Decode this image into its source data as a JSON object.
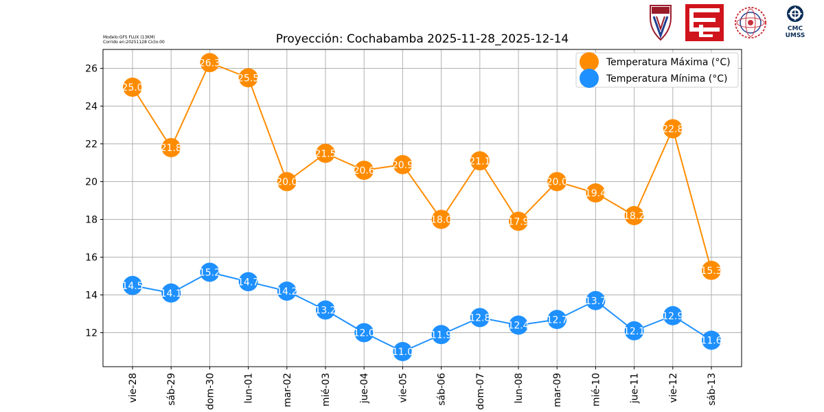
{
  "meta": {
    "line1": "Modelo:GFS FLUX (13KM)",
    "line2": "Corrido en:20251128 Ciclo:00"
  },
  "logos": {
    "cmc_line1": "CMC",
    "cmc_line2": "UMSS"
  },
  "chart_data": {
    "type": "line",
    "title": "Proyección: Cochabamba 2025-11-28_2025-12-14",
    "xlabel": "",
    "ylabel": "",
    "categories": [
      "vie-28",
      "sáb-29",
      "dom-30",
      "lun-01",
      "mar-02",
      "mié-03",
      "jue-04",
      "vie-05",
      "sáb-06",
      "dom-07",
      "lun-08",
      "mar-09",
      "mié-10",
      "jue-11",
      "vie-12",
      "sáb-13"
    ],
    "ylim": [
      10.2,
      27.0
    ],
    "yticks": [
      12,
      14,
      16,
      18,
      20,
      22,
      24,
      26
    ],
    "grid": true,
    "legend_position": "top-right",
    "series": [
      {
        "name": "Temperatura Máxima  (°C)",
        "color": "#ff8c00",
        "values": [
          25.0,
          21.8,
          26.3,
          25.5,
          20.0,
          21.5,
          20.6,
          20.9,
          18.0,
          21.1,
          17.9,
          20.0,
          19.4,
          18.2,
          22.8,
          15.3
        ],
        "labels": [
          "25.0",
          "21.8",
          "26.3",
          "25.5",
          "20.0",
          "21.5",
          "20.6",
          "20.9",
          "18.0",
          "21.1",
          "17.9",
          "20.0",
          "19.4",
          "18.2",
          "22.8",
          "15.3"
        ]
      },
      {
        "name": "Temperatura Mínima  (°C)",
        "color": "#1e90ff",
        "values": [
          14.5,
          14.1,
          15.2,
          14.7,
          14.2,
          13.2,
          12.0,
          11.0,
          11.9,
          12.8,
          12.4,
          12.7,
          13.7,
          12.1,
          12.9,
          11.6
        ],
        "labels": [
          "14.5",
          "14.1",
          "15.2",
          "14.7",
          "14.2",
          "13.2",
          "12.0",
          "11.0",
          "11.9",
          "12.8",
          "12.4",
          "12.7",
          "13.7",
          "12.1",
          "12.9",
          "11.6"
        ]
      }
    ]
  }
}
